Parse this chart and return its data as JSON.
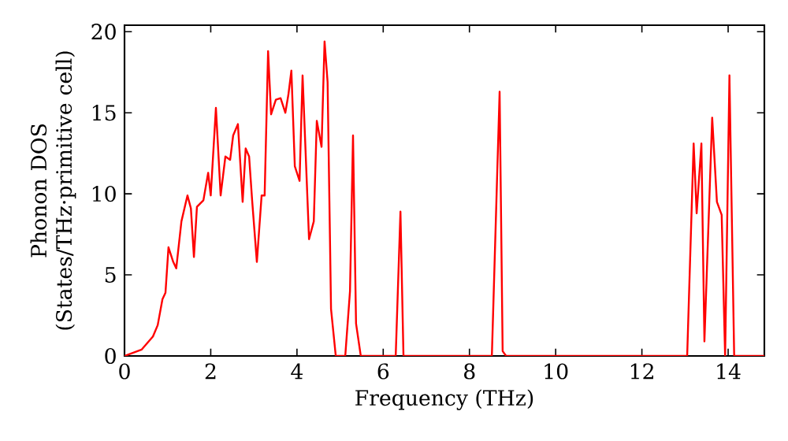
{
  "chart_data": {
    "type": "line",
    "xlabel": "Frequency (THz)",
    "ylabel": "Phonon DOS (States/THz·primitive cell)",
    "color": "#ff0000",
    "xlim": [
      0,
      14.84
    ],
    "ylim": [
      0,
      20.4
    ],
    "xticks": [
      0,
      2,
      4,
      6,
      8,
      10,
      12,
      14
    ],
    "yticks": [
      0,
      5,
      10,
      15,
      20
    ],
    "x": [
      0,
      0.4,
      0.66,
      0.77,
      0.88,
      0.95,
      1.02,
      1.13,
      1.2,
      1.32,
      1.46,
      1.54,
      1.61,
      1.68,
      1.83,
      1.94,
      2.0,
      2.12,
      2.23,
      2.34,
      2.45,
      2.52,
      2.63,
      2.74,
      2.81,
      2.89,
      2.96,
      3.07,
      3.18,
      3.25,
      3.33,
      3.4,
      3.51,
      3.62,
      3.73,
      3.8,
      3.87,
      3.95,
      4.06,
      4.13,
      4.28,
      4.39,
      4.46,
      4.57,
      4.64,
      4.71,
      4.79,
      4.9,
      5.12,
      5.23,
      5.3,
      5.37,
      5.48,
      6.29,
      6.4,
      6.47,
      8.52,
      8.7,
      8.77,
      8.85,
      13.05,
      13.2,
      13.27,
      13.38,
      13.45,
      13.63,
      13.74,
      13.85,
      13.93,
      14.03,
      14.14,
      14.84
    ],
    "values": [
      0,
      0.4,
      1.2,
      1.9,
      3.5,
      3.9,
      6.7,
      5.8,
      5.4,
      8.3,
      9.9,
      9.1,
      6.1,
      9.2,
      9.6,
      11.3,
      9.9,
      15.3,
      9.9,
      12.3,
      12.1,
      13.6,
      14.3,
      9.5,
      12.8,
      12.3,
      9.6,
      5.8,
      9.9,
      9.9,
      18.8,
      14.9,
      15.8,
      15.9,
      15.0,
      16.1,
      17.6,
      11.7,
      10.8,
      17.3,
      7.2,
      8.3,
      14.5,
      12.9,
      19.4,
      16.9,
      2.9,
      0,
      0,
      4,
      13.6,
      2,
      0,
      0,
      8.9,
      0,
      0,
      16.3,
      0.3,
      0,
      0,
      13.1,
      8.8,
      13.1,
      0.9,
      14.7,
      9.5,
      8.7,
      0,
      17.3,
      0,
      0
    ]
  }
}
